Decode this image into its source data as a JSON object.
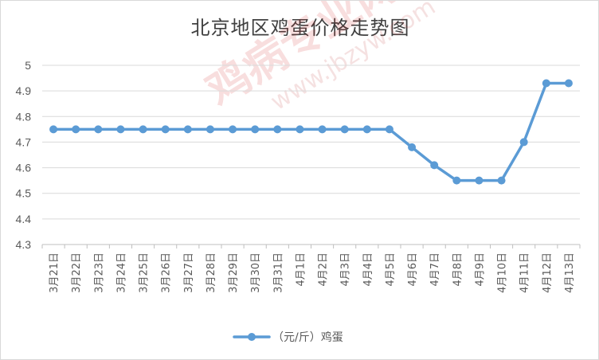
{
  "chart_data": {
    "type": "line",
    "title": "北京地区鸡蛋价格走势图",
    "xlabel": "",
    "ylabel": "",
    "categories": [
      "3月21日",
      "3月22日",
      "3月23日",
      "3月24日",
      "3月25日",
      "3月26日",
      "3月27日",
      "3月28日",
      "3月29日",
      "3月30日",
      "3月31日",
      "4月1日",
      "4月2日",
      "4月3日",
      "4月4日",
      "4月5日",
      "4月6日",
      "4月7日",
      "4月8日",
      "4月9日",
      "4月10日",
      "4月11日",
      "4月12日",
      "4月13日"
    ],
    "series": [
      {
        "name": "（元/斤）鸡蛋",
        "color": "#5b9bd5",
        "values": [
          4.75,
          4.75,
          4.75,
          4.75,
          4.75,
          4.75,
          4.75,
          4.75,
          4.75,
          4.75,
          4.75,
          4.75,
          4.75,
          4.75,
          4.75,
          4.75,
          4.68,
          4.61,
          4.55,
          4.55,
          4.55,
          4.7,
          4.93,
          4.93
        ]
      }
    ],
    "ylim": [
      4.3,
      5.0
    ],
    "yticks": [
      "4.3",
      "4.4",
      "4.5",
      "4.6",
      "4.7",
      "4.8",
      "4.9",
      "5"
    ],
    "grid": true,
    "legend": "bottom-center"
  },
  "watermark": {
    "main": "鸡病专业网",
    "url": "www.jbzyw.com"
  }
}
